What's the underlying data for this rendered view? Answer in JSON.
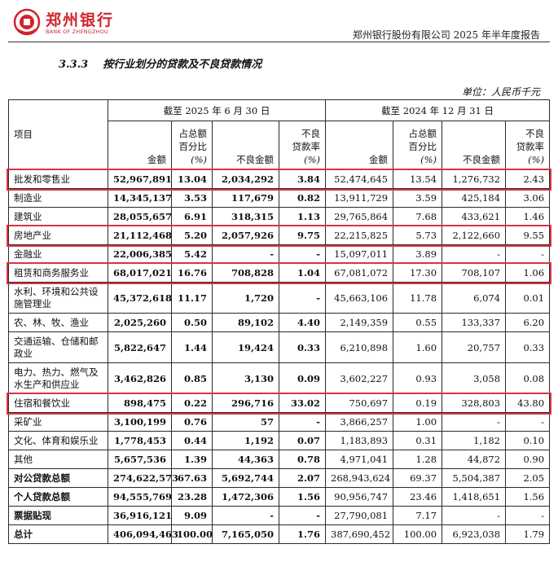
{
  "header": {
    "logo_cn": "郑州银行",
    "logo_en": "BANK OF ZHENGZHOU",
    "report_title": "郑州银行股份有限公司 2025 年半年度报告",
    "brand_color": "#d2232a"
  },
  "section": {
    "number": "3.3.3",
    "title": "按行业划分的贷款及不良贷款情况"
  },
  "unit": "单位：人民币千元",
  "table": {
    "item_header": "项目",
    "period_current": "截至 2025 年 6 月 30 日",
    "period_prior": "截至 2024 年 12 月 31 日",
    "col_amount": "金额",
    "col_share_1": "占总额",
    "col_share_2": "百分比",
    "col_share_3": "(%)",
    "col_npl_amount": "不良金额",
    "col_npl_ratio_1": "不良",
    "col_npl_ratio_2": "贷款率",
    "col_npl_ratio_3": "(%)",
    "rows": [
      {
        "name": "批发和零售业",
        "c_amt": "52,967,891",
        "c_pct": "13.04",
        "c_npl": "2,034,292",
        "c_rate": "3.84",
        "p_amt": "52,474,645",
        "p_pct": "13.54",
        "p_npl": "1,276,732",
        "p_rate": "2.43",
        "highlight": true
      },
      {
        "name": "制造业",
        "c_amt": "14,345,137",
        "c_pct": "3.53",
        "c_npl": "117,679",
        "c_rate": "0.82",
        "p_amt": "13,911,729",
        "p_pct": "3.59",
        "p_npl": "425,184",
        "p_rate": "3.06"
      },
      {
        "name": "建筑业",
        "c_amt": "28,055,657",
        "c_pct": "6.91",
        "c_npl": "318,315",
        "c_rate": "1.13",
        "p_amt": "29,765,864",
        "p_pct": "7.68",
        "p_npl": "433,621",
        "p_rate": "1.46"
      },
      {
        "name": "房地产业",
        "c_amt": "21,112,468",
        "c_pct": "5.20",
        "c_npl": "2,057,926",
        "c_rate": "9.75",
        "p_amt": "22,215,825",
        "p_pct": "5.73",
        "p_npl": "2,122,660",
        "p_rate": "9.55",
        "highlight": true
      },
      {
        "name": "金融业",
        "c_amt": "22,006,385",
        "c_pct": "5.42",
        "c_npl": "-",
        "c_rate": "-",
        "p_amt": "15,097,011",
        "p_pct": "3.89",
        "p_npl": "-",
        "p_rate": "-"
      },
      {
        "name": "租赁和商务服务业",
        "c_amt": "68,017,021",
        "c_pct": "16.76",
        "c_npl": "708,828",
        "c_rate": "1.04",
        "p_amt": "67,081,072",
        "p_pct": "17.30",
        "p_npl": "708,107",
        "p_rate": "1.06",
        "highlight": true
      },
      {
        "name": "水利、环境和公共设施管理业",
        "c_amt": "45,372,618",
        "c_pct": "11.17",
        "c_npl": "1,720",
        "c_rate": "-",
        "p_amt": "45,663,106",
        "p_pct": "11.78",
        "p_npl": "6,074",
        "p_rate": "0.01",
        "tall": true
      },
      {
        "name": "农、林、牧、渔业",
        "c_amt": "2,025,260",
        "c_pct": "0.50",
        "c_npl": "89,102",
        "c_rate": "4.40",
        "p_amt": "2,149,359",
        "p_pct": "0.55",
        "p_npl": "133,337",
        "p_rate": "6.20"
      },
      {
        "name": "交通运输、仓储和邮政业",
        "c_amt": "5,822,647",
        "c_pct": "1.44",
        "c_npl": "19,424",
        "c_rate": "0.33",
        "p_amt": "6,210,898",
        "p_pct": "1.60",
        "p_npl": "20,757",
        "p_rate": "0.33",
        "tall": true
      },
      {
        "name": "电力、热力、燃气及水生产和供应业",
        "c_amt": "3,462,826",
        "c_pct": "0.85",
        "c_npl": "3,130",
        "c_rate": "0.09",
        "p_amt": "3,602,227",
        "p_pct": "0.93",
        "p_npl": "3,058",
        "p_rate": "0.08",
        "tall": true
      },
      {
        "name": "住宿和餐饮业",
        "c_amt": "898,475",
        "c_pct": "0.22",
        "c_npl": "296,716",
        "c_rate": "33.02",
        "p_amt": "750,697",
        "p_pct": "0.19",
        "p_npl": "328,803",
        "p_rate": "43.80",
        "highlight": true
      },
      {
        "name": "采矿业",
        "c_amt": "3,100,199",
        "c_pct": "0.76",
        "c_npl": "57",
        "c_rate": "-",
        "p_amt": "3,866,257",
        "p_pct": "1.00",
        "p_npl": "-",
        "p_rate": "-"
      },
      {
        "name": "文化、体育和娱乐业",
        "c_amt": "1,778,453",
        "c_pct": "0.44",
        "c_npl": "1,192",
        "c_rate": "0.07",
        "p_amt": "1,183,893",
        "p_pct": "0.31",
        "p_npl": "1,182",
        "p_rate": "0.10"
      },
      {
        "name": "其他",
        "c_amt": "5,657,536",
        "c_pct": "1.39",
        "c_npl": "44,363",
        "c_rate": "0.78",
        "p_amt": "4,971,041",
        "p_pct": "1.28",
        "p_npl": "44,872",
        "p_rate": "0.90"
      },
      {
        "name": "对公贷款总额",
        "c_amt": "274,622,573",
        "c_pct": "67.63",
        "c_npl": "5,692,744",
        "c_rate": "2.07",
        "p_amt": "268,943,624",
        "p_pct": "69.37",
        "p_npl": "5,504,387",
        "p_rate": "2.05",
        "bold_name": true
      },
      {
        "name": "个人贷款总额",
        "c_amt": "94,555,769",
        "c_pct": "23.28",
        "c_npl": "1,472,306",
        "c_rate": "1.56",
        "p_amt": "90,956,747",
        "p_pct": "23.46",
        "p_npl": "1,418,651",
        "p_rate": "1.56",
        "bold_name": true
      },
      {
        "name": "票据贴现",
        "c_amt": "36,916,121",
        "c_pct": "9.09",
        "c_npl": "-",
        "c_rate": "-",
        "p_amt": "27,790,081",
        "p_pct": "7.17",
        "p_npl": "-",
        "p_rate": "-",
        "bold_name": true
      },
      {
        "name": "总计",
        "c_amt": "406,094,463",
        "c_pct": "100.00",
        "c_npl": "7,165,050",
        "c_rate": "1.76",
        "p_amt": "387,690,452",
        "p_pct": "100.00",
        "p_npl": "6,923,038",
        "p_rate": "1.79",
        "bold_name": true
      }
    ],
    "highlight_color": "#e0313e"
  }
}
